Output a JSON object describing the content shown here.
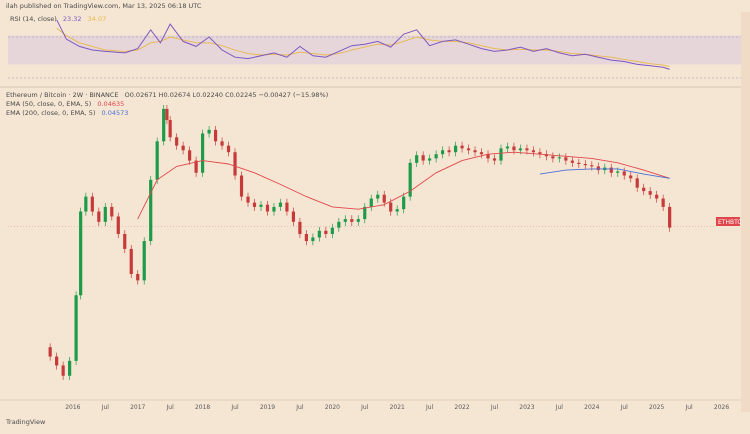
{
  "header": {
    "publisher": "ilah published on TradingView.com, Mar 13, 2025 06:18 UTC"
  },
  "footer": {
    "brand": "TradingView"
  },
  "colors": {
    "background": "#f5e6d3",
    "rsi_line": "#7e57c2",
    "rsi_ma": "#e8b84a",
    "rsi_band": "#d9c7de",
    "up_candle": "#1e9b4a",
    "down_candle": "#c73a3a",
    "ema50": "#e0474c",
    "ema200": "#4a6fd8",
    "price_badge": "#e0474c"
  },
  "chart_data": [
    {
      "type": "line",
      "name": "rsi-panel",
      "legend_label": "RSI (14, close)",
      "rsi_value": "23.32",
      "rsi_ma_value": "34.07",
      "ylim": [
        0,
        100
      ],
      "upper_band": 70,
      "lower_band": 30,
      "rsi_x": [
        2015.75,
        2015.9,
        2016.1,
        2016.3,
        2016.5,
        2016.8,
        2017.0,
        2017.2,
        2017.35,
        2017.5,
        2017.7,
        2017.9,
        2018.1,
        2018.3,
        2018.5,
        2018.7,
        2018.9,
        2019.1,
        2019.3,
        2019.5,
        2019.7,
        2019.9,
        2020.1,
        2020.3,
        2020.5,
        2020.7,
        2020.9,
        2021.1,
        2021.3,
        2021.5,
        2021.7,
        2021.9,
        2022.1,
        2022.3,
        2022.5,
        2022.7,
        2022.9,
        2023.1,
        2023.3,
        2023.5,
        2023.7,
        2023.9,
        2024.1,
        2024.3,
        2024.5,
        2024.7,
        2024.9,
        2025.1,
        2025.2
      ],
      "rsi_y": [
        92,
        65,
        55,
        50,
        48,
        46,
        52,
        78,
        60,
        86,
        62,
        55,
        68,
        50,
        40,
        38,
        42,
        46,
        40,
        55,
        42,
        40,
        48,
        56,
        58,
        62,
        54,
        72,
        78,
        56,
        62,
        64,
        58,
        52,
        48,
        50,
        54,
        48,
        52,
        46,
        42,
        44,
        40,
        36,
        34,
        30,
        28,
        26,
        23
      ],
      "rsi_ma_y": [
        80,
        70,
        60,
        55,
        50,
        48,
        50,
        60,
        62,
        68,
        64,
        60,
        60,
        56,
        50,
        45,
        43,
        44,
        43,
        47,
        45,
        43,
        45,
        50,
        54,
        58,
        57,
        62,
        68,
        64,
        62,
        62,
        60,
        56,
        52,
        50,
        51,
        50,
        50,
        48,
        45,
        44,
        42,
        40,
        37,
        34,
        31,
        29,
        27
      ]
    },
    {
      "type": "candlestick",
      "name": "price-panel",
      "legend_title": "Ethereum / Bitcoin · 2W · BINANCE",
      "legend_ohlc": "O0.02671 H0.02674 L0.02240 C0.02245 −0.00427 (−15.98%)",
      "ema50_label": "EMA (50, close, 0, EMA, 5)",
      "ema50_value": "0.04635",
      "ema200_label": "EMA (200, close, 0, EMA, 5)",
      "ema200_value": "0.04573",
      "price_badge_label": "ETHBTC",
      "x_tick_labels": [
        "2016",
        "Jul",
        "2017",
        "Jul",
        "2018",
        "Jul",
        "2019",
        "Jul",
        "2020",
        "Jul",
        "2021",
        "Jul",
        "2022",
        "Jul",
        "2023",
        "Jul",
        "2024",
        "Jul",
        "2025",
        "Jul",
        "2026"
      ],
      "x_tick_values": [
        2016.0,
        2016.5,
        2017.0,
        2017.5,
        2018.0,
        2018.5,
        2019.0,
        2019.5,
        2020.0,
        2020.5,
        2021.0,
        2021.5,
        2022.0,
        2022.5,
        2023.0,
        2023.5,
        2024.0,
        2024.5,
        2025.0,
        2025.5,
        2026.0
      ],
      "xlim": [
        2015.0,
        2026.3
      ],
      "ylim": [
        0.0,
        0.15
      ],
      "y_scale": "log",
      "close_x": [
        2015.65,
        2015.75,
        2015.85,
        2015.95,
        2016.05,
        2016.12,
        2016.2,
        2016.3,
        2016.4,
        2016.5,
        2016.6,
        2016.7,
        2016.8,
        2016.9,
        2017.0,
        2017.1,
        2017.2,
        2017.3,
        2017.4,
        2017.45,
        2017.5,
        2017.6,
        2017.7,
        2017.8,
        2017.9,
        2018.0,
        2018.1,
        2018.2,
        2018.3,
        2018.4,
        2018.5,
        2018.6,
        2018.7,
        2018.8,
        2018.9,
        2019.0,
        2019.1,
        2019.2,
        2019.3,
        2019.4,
        2019.5,
        2019.6,
        2019.7,
        2019.8,
        2019.9,
        2020.0,
        2020.1,
        2020.2,
        2020.3,
        2020.4,
        2020.5,
        2020.6,
        2020.7,
        2020.8,
        2020.9,
        2021.0,
        2021.1,
        2021.2,
        2021.3,
        2021.4,
        2021.5,
        2021.6,
        2021.7,
        2021.8,
        2021.9,
        2022.0,
        2022.1,
        2022.2,
        2022.3,
        2022.4,
        2022.5,
        2022.6,
        2022.7,
        2022.8,
        2022.9,
        2023.0,
        2023.1,
        2023.2,
        2023.3,
        2023.4,
        2023.5,
        2023.6,
        2023.7,
        2023.8,
        2023.9,
        2024.0,
        2024.1,
        2024.2,
        2024.3,
        2024.4,
        2024.5,
        2024.6,
        2024.7,
        2024.8,
        2024.9,
        2025.0,
        2025.1,
        2025.2
      ],
      "close_y": [
        0.0032,
        0.0028,
        0.0024,
        0.003,
        0.008,
        0.028,
        0.035,
        0.028,
        0.024,
        0.03,
        0.026,
        0.02,
        0.016,
        0.011,
        0.01,
        0.018,
        0.045,
        0.08,
        0.13,
        0.11,
        0.085,
        0.075,
        0.07,
        0.06,
        0.05,
        0.09,
        0.095,
        0.08,
        0.075,
        0.068,
        0.048,
        0.035,
        0.032,
        0.03,
        0.031,
        0.028,
        0.03,
        0.032,
        0.028,
        0.024,
        0.02,
        0.018,
        0.019,
        0.021,
        0.02,
        0.022,
        0.024,
        0.025,
        0.024,
        0.025,
        0.03,
        0.034,
        0.036,
        0.032,
        0.028,
        0.029,
        0.035,
        0.058,
        0.065,
        0.06,
        0.062,
        0.066,
        0.07,
        0.068,
        0.075,
        0.072,
        0.07,
        0.068,
        0.066,
        0.062,
        0.06,
        0.072,
        0.074,
        0.07,
        0.072,
        0.07,
        0.068,
        0.066,
        0.064,
        0.062,
        0.063,
        0.06,
        0.058,
        0.057,
        0.056,
        0.055,
        0.052,
        0.054,
        0.05,
        0.051,
        0.048,
        0.046,
        0.04,
        0.038,
        0.036,
        0.034,
        0.03,
        0.022
      ],
      "ema50_x": [
        2017.0,
        2017.3,
        2017.6,
        2018.0,
        2018.4,
        2018.8,
        2019.2,
        2019.6,
        2020.0,
        2020.4,
        2020.8,
        2021.2,
        2021.6,
        2022.0,
        2022.4,
        2022.8,
        2023.2,
        2023.6,
        2024.0,
        2024.4,
        2024.8,
        2025.2
      ],
      "ema50_y": [
        0.025,
        0.045,
        0.055,
        0.06,
        0.057,
        0.05,
        0.042,
        0.035,
        0.03,
        0.029,
        0.031,
        0.038,
        0.05,
        0.06,
        0.066,
        0.068,
        0.066,
        0.064,
        0.062,
        0.058,
        0.052,
        0.046
      ],
      "ema200_x": [
        2023.2,
        2023.6,
        2024.0,
        2024.4,
        2024.8,
        2025.2
      ],
      "ema200_y": [
        0.049,
        0.052,
        0.053,
        0.053,
        0.049,
        0.046
      ],
      "last_price": 0.02245
    }
  ]
}
